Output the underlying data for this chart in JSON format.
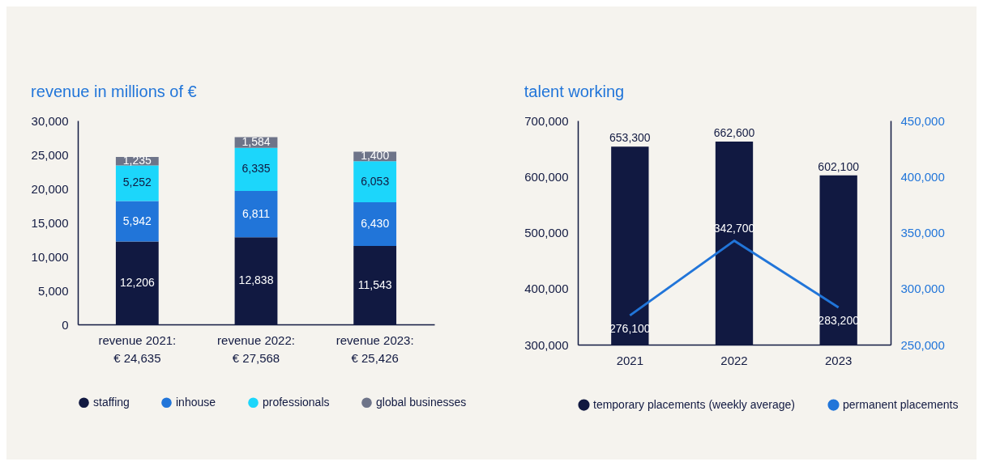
{
  "chart_data": [
    {
      "type": "bar",
      "title": "revenue in millions of €",
      "stacked": true,
      "legend": "bottom",
      "grid": false,
      "categories": [
        "revenue 2021:\n€ 24,635",
        "revenue 2022:\n€ 27,568",
        "revenue 2023:\n€ 25,426"
      ],
      "series": [
        {
          "name": "staffing",
          "color": "#111941",
          "values": [
            12206,
            12838,
            11543
          ],
          "value_labels": [
            "12,206",
            "12,838",
            "11,543"
          ]
        },
        {
          "name": "inhouse",
          "color": "#2175d9",
          "values": [
            5942,
            6811,
            6430
          ],
          "value_labels": [
            "5,942",
            "6,811",
            "6,430"
          ]
        },
        {
          "name": "professionals",
          "color": "#1cd6fb",
          "values": [
            5252,
            6335,
            6053
          ],
          "value_labels": [
            "5,252",
            "6,335",
            "6,053"
          ]
        },
        {
          "name": "global businesses",
          "color": "#6e7489",
          "values": [
            1235,
            1584,
            1400
          ],
          "value_labels": [
            "1,235",
            "1,584",
            "1,400"
          ]
        }
      ],
      "ylim": [
        0,
        30000
      ],
      "yticks": [
        0,
        {
          "value": 5000,
          "label": "5,000"
        },
        {
          "value": 10000,
          "label": "10,000"
        },
        {
          "value": 15000,
          "label": "15,000"
        },
        {
          "value": 20000,
          "label": "20,000"
        },
        {
          "value": 25000,
          "label": "25,000"
        },
        {
          "value": 30000,
          "label": "30,000"
        }
      ]
    },
    {
      "type": "bar",
      "title": "talent working",
      "legend": "bottom",
      "grid": false,
      "categories": [
        "2021",
        "2022",
        "2023"
      ],
      "series": [
        {
          "name": "temporary placements (weekly average)",
          "color": "#111941",
          "values": [
            653300,
            662600,
            602100
          ],
          "value_labels": [
            "653,300",
            "662,600",
            "602,100"
          ]
        },
        {
          "name": "permanent placements",
          "type": "line",
          "axis": "y2",
          "color": "#2175d9",
          "values": [
            276100,
            342700,
            283200
          ],
          "value_labels": [
            "276,100",
            "342,700",
            "283,200"
          ]
        }
      ],
      "ylim": [
        300000,
        700000
      ],
      "yticks": [
        {
          "value": 300000,
          "label": "300,000"
        },
        {
          "value": 400000,
          "label": "400,000"
        },
        {
          "value": 500000,
          "label": "500,000"
        },
        {
          "value": 600000,
          "label": "600,000"
        },
        {
          "value": 700000,
          "label": "700,000"
        }
      ],
      "y2lim": [
        250000,
        450000
      ],
      "y2ticks": [
        {
          "value": 250000,
          "label": "250,000"
        },
        {
          "value": 300000,
          "label": "300,000"
        },
        {
          "value": 350000,
          "label": "350,000"
        },
        {
          "value": 400000,
          "label": "400,000"
        },
        {
          "value": 450000,
          "label": "450,000"
        }
      ]
    }
  ]
}
